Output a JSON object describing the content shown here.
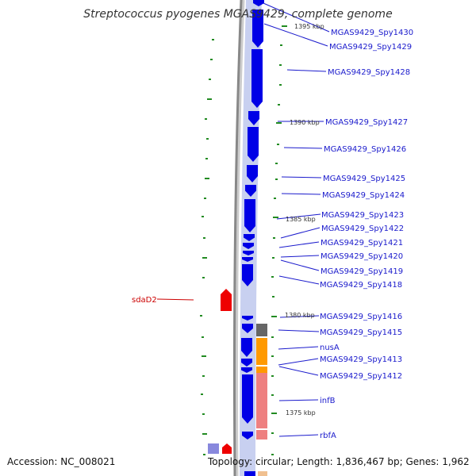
{
  "title": "Streptococcus pyogenes MGAS9429, complete genome",
  "accession": "Accession: NC_008021",
  "topology": "Topology: circular; Length: 1,836,467 bp; Genes: 1,962",
  "colors": {
    "forward_gene": "#0000e6",
    "feature_red": "#ee0000",
    "label_blue": "#1a1acc",
    "label_red": "#cc0000",
    "tick_green": "#228b22",
    "backbone_gray": "#888888",
    "feature_orange": "#ff9900",
    "feature_salmon": "#ee8080",
    "feature_gray": "#666666"
  },
  "tick_labels": [
    "1395 kbp",
    "1390 kbp",
    "1385 kbp",
    "1380 kbp",
    "1375 kbp"
  ],
  "gene_labels": [
    "MGAS9429_Spy1430",
    "MGAS9429_Spy1429",
    "MGAS9429_Spy1428",
    "MGAS9429_Spy1427",
    "MGAS9429_Spy1426",
    "MGAS9429_Spy1425",
    "MGAS9429_Spy1424",
    "MGAS9429_Spy1423",
    "MGAS9429_Spy1422",
    "MGAS9429_Spy1421",
    "MGAS9429_Spy1420",
    "MGAS9429_Spy1419",
    "MGAS9429_Spy1418",
    "MGAS9429_Spy1416",
    "MGAS9429_Spy1415",
    "nusA",
    "MGAS9429_Spy1413",
    "MGAS9429_Spy1412",
    "infB",
    "rbfA"
  ],
  "left_labels": [
    "sdaD2"
  ]
}
